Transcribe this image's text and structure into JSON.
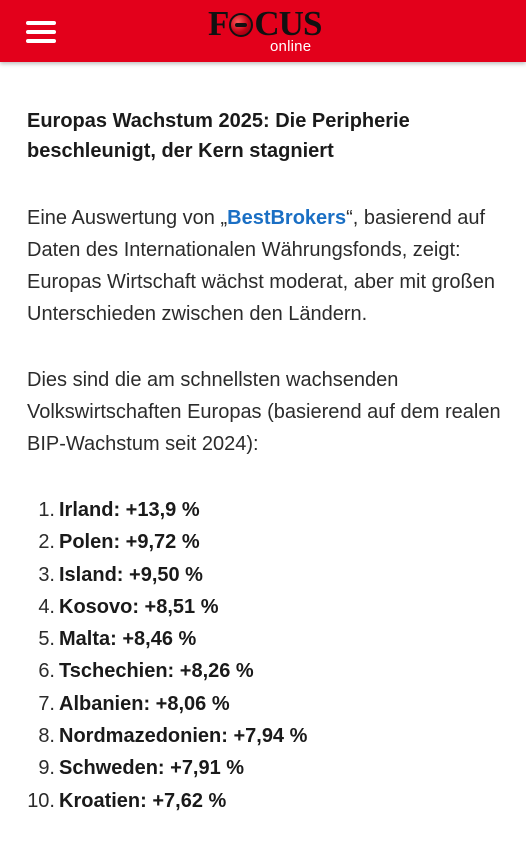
{
  "header": {
    "logo_main_left": "F",
    "logo_main_right": "CUS",
    "logo_sub": "online",
    "background_color": "#e3001b"
  },
  "article": {
    "headline": "Europas Wachstum 2025: Die Peripherie beschleunigt, der Kern stagniert",
    "intro_before_link": "Eine Auswertung von „",
    "intro_link": "BestBrokers",
    "intro_after_link": "“, basierend auf Daten des Internationalen Währungsfonds, zeigt: Europas Wirtschaft wächst moderat, aber mit großen Unterschieden zwischen den Ländern.",
    "list_intro": "Dies sind die am schnellsten wachsenden Volkswirtschaften Europas (basierend auf dem realen BIP-Wachstum seit 2024):",
    "link_color": "#1a6fc4",
    "ranking": [
      {
        "num": "1.",
        "text": "Irland: +13,9 %"
      },
      {
        "num": "2.",
        "text": "Polen: +9,72 %"
      },
      {
        "num": "3.",
        "text": "Island: +9,50 %"
      },
      {
        "num": "4.",
        "text": "Kosovo: +8,51 %"
      },
      {
        "num": "5.",
        "text": "Malta: +8,46 %"
      },
      {
        "num": "6.",
        "text": "Tschechien: +8,26 %"
      },
      {
        "num": "7.",
        "text": "Albanien: +8,06 %"
      },
      {
        "num": "8.",
        "text": "Nordmazedonien: +7,94 %"
      },
      {
        "num": "9.",
        "text": "Schweden: +7,91 %"
      },
      {
        "num": "10.",
        "text": "Kroatien: +7,62 %"
      }
    ]
  }
}
